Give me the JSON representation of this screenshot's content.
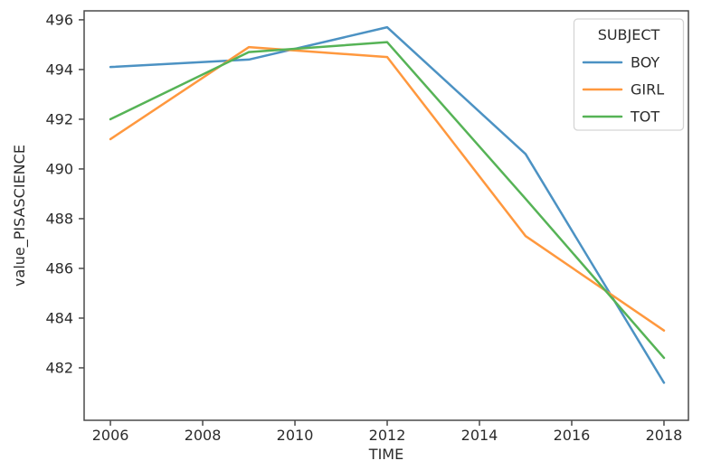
{
  "chart_data": {
    "type": "line",
    "title": "",
    "xlabel": "TIME",
    "ylabel": "value_PISASCIENCE",
    "x": [
      2006,
      2009,
      2012,
      2015,
      2018
    ],
    "series": [
      {
        "name": "BOY",
        "color": "#4C92C3",
        "values": [
          494.1,
          494.4,
          495.7,
          490.6,
          481.4
        ]
      },
      {
        "name": "GIRL",
        "color": "#FF983E",
        "values": [
          491.2,
          494.9,
          494.5,
          487.3,
          483.5
        ]
      },
      {
        "name": "TOT",
        "color": "#56B356",
        "values": [
          492.0,
          494.7,
          495.1,
          488.8,
          482.4
        ]
      }
    ],
    "legend": {
      "title": "SUBJECT",
      "position": "upper right"
    },
    "x_ticks": [
      2006,
      2008,
      2010,
      2012,
      2014,
      2016,
      2018
    ],
    "y_ticks": [
      482,
      484,
      486,
      488,
      490,
      492,
      494,
      496
    ],
    "xlim": [
      2005.43,
      2018.53
    ],
    "ylim": [
      479.89,
      496.36
    ],
    "grid": false
  },
  "colors": {
    "axis": "#4a4a4a",
    "tick_text": "#2b2b2b",
    "legend_border": "#d5d5d5",
    "background": "#ffffff"
  }
}
